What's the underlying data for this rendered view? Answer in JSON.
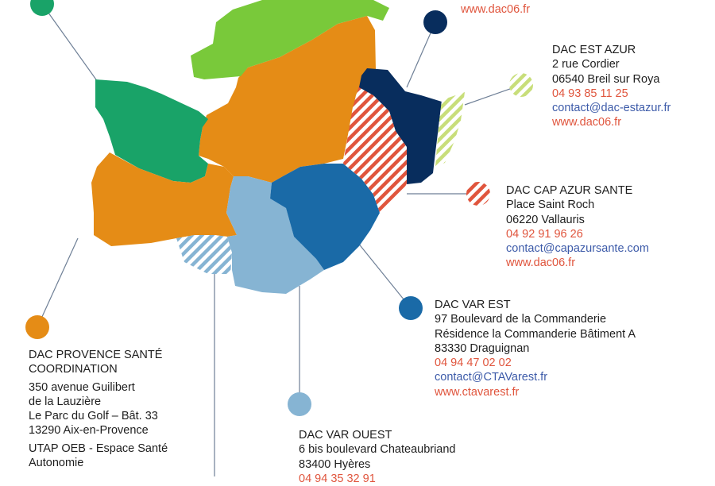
{
  "colors": {
    "green_dark": "#19a368",
    "green_light": "#79c93a",
    "orange": "#e58c16",
    "navy": "#082d5d",
    "blue_mid": "#1a6aa7",
    "blue_light": "#86b4d3",
    "stripe_red": "#e0553d",
    "stripe_lime": "#c8de7a",
    "stripe_blue": "#86b4d3",
    "text": "#1e1e1e",
    "phone": "#e0553d",
    "link": "#3d5ba9"
  },
  "top_partial": {
    "web": "www.dac06.fr"
  },
  "dac_est_azur": {
    "name": "DAC EST AZUR",
    "address1": "2 rue Cordier",
    "address2": "06540 Breil sur Roya",
    "phone": "04 93 85 11 25",
    "email": "contact@dac-estazur.fr",
    "web": "www.dac06.fr"
  },
  "dac_cap_azur": {
    "name": "DAC CAP AZUR SANTE",
    "address1": "Place Saint Roch",
    "address2": "06220 Vallauris",
    "phone": "04 92 91 96 26",
    "email": "contact@capazursante.com",
    "web": "www.dac06.fr"
  },
  "dac_var_est": {
    "name": "DAC VAR EST",
    "address1": "97 Boulevard de la Commanderie",
    "address2": "Résidence la Commanderie Bâtiment A",
    "address3": "83330 Draguignan",
    "phone": "04 94 47 02 02",
    "email": "contact@CTAVarest.fr",
    "web": "www.ctavarest.fr"
  },
  "dac_var_ouest": {
    "name": "DAC VAR OUEST",
    "address1": "6 bis boulevard Chateaubriand",
    "address2": "83400 Hyères",
    "phone": "04 94 35 32 91"
  },
  "dac_provence": {
    "name_line1": "DAC PROVENCE SANTÉ",
    "name_line2": "COORDINATION",
    "address1": "350 avenue Guilibert",
    "address2": "de la Lauzière",
    "address3": "Le Parc du Golf – Bât. 33",
    "address4": "13290 Aix-en-Provence",
    "utap_line1": "UTAP OEB - Espace Santé",
    "utap_line2": "Autonomie"
  }
}
